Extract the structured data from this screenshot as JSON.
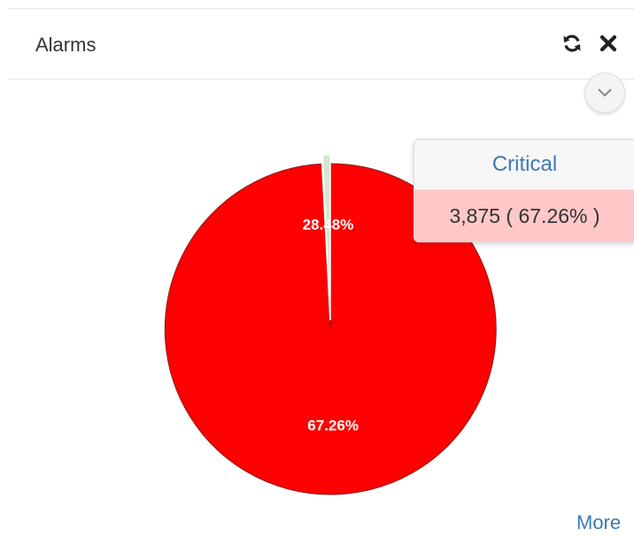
{
  "widget": {
    "title": "Alarms",
    "icons": {
      "refresh": "refresh-icon",
      "close": "close-icon",
      "menu": "chevron-down-icon"
    },
    "more_label": "More"
  },
  "chart_data": {
    "type": "pie",
    "title": "",
    "legend": "none",
    "slices": [
      {
        "name": "Critical",
        "value": 3875,
        "percent": 67.26,
        "label": "67.26%",
        "color": "#ff0000",
        "exploded": true
      },
      {
        "value": 1.2,
        "color": "#f0d6f3",
        "label": ""
      },
      {
        "value": 3.06,
        "color": "#fbe3cc",
        "label": ""
      },
      {
        "value": 28.48,
        "label": "28.48%",
        "color": "#d4e6d1"
      }
    ]
  },
  "tooltip": {
    "series": "Critical",
    "value_text": "3,875 ( 67.26% )"
  }
}
